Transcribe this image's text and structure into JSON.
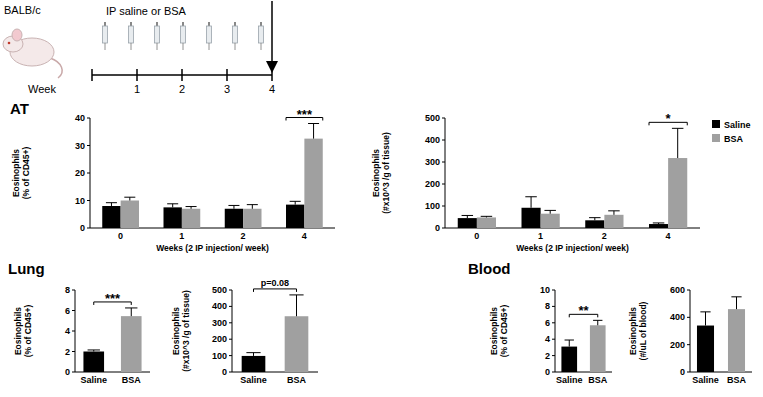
{
  "timeline": {
    "strain": "BALB/c",
    "treatment": "IP saline or BSA",
    "axis_label": "Week",
    "weeks": [
      1,
      2,
      3,
      4
    ]
  },
  "chart_data": [
    {
      "type": "bar",
      "title": "AT",
      "categories": [
        "0",
        "1",
        "2",
        "4"
      ],
      "x_label": "Weeks (2 IP injection/ week)",
      "y_label": "Eosinophils\n(% of CD45+)",
      "ylim": [
        0,
        40
      ],
      "yticks": [
        0,
        10,
        20,
        30,
        40
      ],
      "series": [
        {
          "color": "#000000",
          "values": [
            8,
            7.5,
            7,
            8.5
          ],
          "errors": [
            1.2,
            1.3,
            1.2,
            1.2
          ]
        },
        {
          "color": "#a0a0a0",
          "values": [
            10,
            7,
            7,
            32.5
          ],
          "errors": [
            1.2,
            0.8,
            1.5,
            5.5
          ]
        }
      ],
      "annotations": [
        {
          "text": "***",
          "category": "4"
        }
      ]
    },
    {
      "type": "bar",
      "categories": [
        "0",
        "1",
        "2",
        "4"
      ],
      "x_label": "Weeks (2 IP injection/ week)",
      "y_label": "Eosinophils\n(#x10^3 /g of tissue)",
      "ylim": [
        0,
        500
      ],
      "yticks": [
        0,
        100,
        200,
        300,
        400,
        500
      ],
      "legend": "top-right",
      "series": [
        {
          "name": "Saline",
          "color": "#000000",
          "values": [
            45,
            92,
            35,
            18
          ],
          "errors": [
            12,
            50,
            12,
            5
          ]
        },
        {
          "name": "BSA",
          "color": "#a0a0a0",
          "values": [
            48,
            65,
            60,
            318
          ],
          "errors": [
            5,
            15,
            18,
            135
          ]
        }
      ],
      "annotations": [
        {
          "text": "*",
          "category": "4"
        }
      ]
    },
    {
      "type": "bar",
      "title": "Lung",
      "categories": [
        "Saline",
        "BSA"
      ],
      "y_label": "Eosinophils\n(% of CD45+)",
      "ylim": [
        0,
        8
      ],
      "yticks": [
        0,
        2,
        4,
        6,
        8
      ],
      "values": [
        2,
        5.45
      ],
      "errors": [
        0.15,
        0.8
      ],
      "colors": [
        "#000000",
        "#a0a0a0"
      ],
      "annotations": [
        {
          "text": "***"
        }
      ]
    },
    {
      "type": "bar",
      "categories": [
        "Saline",
        "BSA"
      ],
      "y_label": "Eosinophils\n(#x10^3 /g of tissue)",
      "ylim": [
        0,
        500
      ],
      "yticks": [
        0,
        100,
        200,
        300,
        400,
        500
      ],
      "values": [
        98,
        340
      ],
      "errors": [
        20,
        130
      ],
      "colors": [
        "#000000",
        "#a0a0a0"
      ],
      "annotations": [
        {
          "text": "p=0.08"
        }
      ]
    },
    {
      "type": "bar",
      "title": "Blood",
      "categories": [
        "Saline",
        "BSA"
      ],
      "y_label": "Eosinophils\n(% of CD45+)",
      "ylim": [
        0,
        10
      ],
      "yticks": [
        0,
        2,
        4,
        6,
        8,
        10
      ],
      "values": [
        3.1,
        5.7
      ],
      "errors": [
        0.8,
        0.6
      ],
      "colors": [
        "#000000",
        "#a0a0a0"
      ],
      "annotations": [
        {
          "text": "**"
        }
      ]
    },
    {
      "type": "bar",
      "categories": [
        "Saline",
        "BSA"
      ],
      "y_label": "Eosinophils\n(#/uL of blood)",
      "ylim": [
        0,
        600
      ],
      "yticks": [
        0,
        200,
        400,
        600
      ],
      "values": [
        340,
        460
      ],
      "errors": [
        100,
        90
      ],
      "colors": [
        "#000000",
        "#a0a0a0"
      ]
    }
  ]
}
